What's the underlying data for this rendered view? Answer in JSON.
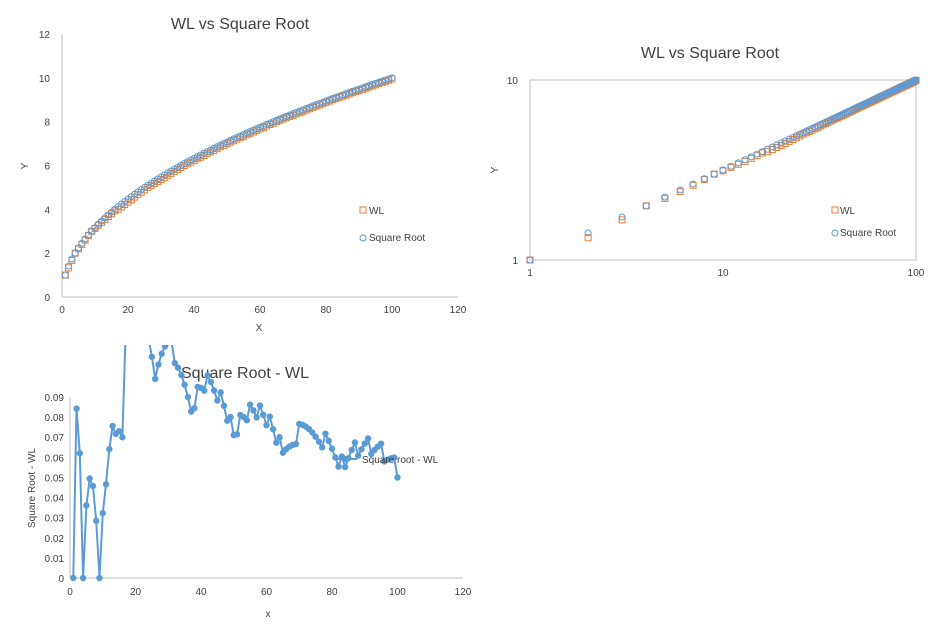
{
  "chart_data": [
    {
      "type": "scatter",
      "title": "WL vs Square Root",
      "xlabel": "X",
      "ylabel": "Y",
      "xlim": [
        0,
        120
      ],
      "ylim": [
        0,
        12
      ],
      "x_ticks": [
        "0",
        "20",
        "40",
        "60",
        "80",
        "100",
        "120"
      ],
      "y_ticks": [
        "0",
        "2",
        "4",
        "6",
        "8",
        "10",
        "12"
      ],
      "x_range": [
        1,
        100
      ],
      "legend_position": "right",
      "series": [
        {
          "name": "WL",
          "marker": "square",
          "color": "#ED7D31",
          "values_y": [
            1,
            1.33,
            1.67,
            2,
            2.2,
            2.4,
            2.6,
            2.8,
            3,
            3.13,
            3.27,
            3.4,
            3.53,
            3.67,
            3.8,
            3.93,
            4,
            4.11,
            4.22,
            4.33,
            4.44,
            4.56,
            4.67,
            4.78,
            4.89,
            5,
            5.09,
            5.18,
            5.27,
            5.36,
            5.45,
            5.55,
            5.64,
            5.73,
            5.82,
            5.91,
            6,
            6.08,
            6.15,
            6.23,
            6.31,
            6.38,
            6.46,
            6.54,
            6.62,
            6.69,
            6.77,
            6.85,
            6.92,
            7,
            7.07,
            7.13,
            7.2,
            7.27,
            7.33,
            7.4,
            7.47,
            7.53,
            7.6,
            7.67,
            7.73,
            7.8,
            7.87,
            7.93,
            8,
            8.06,
            8.12,
            8.18,
            8.24,
            8.29,
            8.35,
            8.41,
            8.47,
            8.53,
            8.59,
            8.65,
            8.71,
            8.76,
            8.82,
            8.88,
            8.94,
            9,
            9.05,
            9.11,
            9.16,
            9.21,
            9.26,
            9.32,
            9.37,
            9.42,
            9.47,
            9.53,
            9.58,
            9.63,
            9.68,
            9.74,
            9.79,
            9.84,
            9.89,
            9.95,
            10
          ]
        },
        {
          "name": "Square Root",
          "marker": "circle",
          "color": "#5B9BD5",
          "formula": "sqrt(x)"
        }
      ]
    },
    {
      "type": "scatter",
      "title": "WL vs Square Root",
      "scale": "log-log",
      "ylabel": "Y",
      "xlim": [
        1,
        100
      ],
      "ylim": [
        1,
        10
      ],
      "x_ticks": [
        "1",
        "10",
        "100"
      ],
      "y_ticks": [
        "1",
        "10"
      ],
      "legend_position": "right",
      "series": [
        {
          "name": "WL",
          "marker": "square",
          "color": "#ED7D31"
        },
        {
          "name": "Square Root",
          "marker": "circle",
          "color": "#5B9BD5"
        }
      ]
    },
    {
      "type": "line",
      "title": "Square Root - WL",
      "xlabel": "x",
      "ylabel": "Square Root - WL",
      "xlim": [
        0,
        120
      ],
      "ylim": [
        0,
        0.09
      ],
      "x_ticks": [
        "0",
        "20",
        "40",
        "60",
        "80",
        "100",
        "120"
      ],
      "y_ticks": [
        "0",
        "0.01",
        "0.02",
        "0.03",
        "0.04",
        "0.05",
        "0.06",
        "0.07",
        "0.08",
        "0.09"
      ],
      "legend_position": "top-right",
      "series": [
        {
          "name": "Square root - WL",
          "marker": "circle",
          "color": "#5B9BD5",
          "formula": "sqrt(x) - WL(x)"
        }
      ]
    }
  ]
}
